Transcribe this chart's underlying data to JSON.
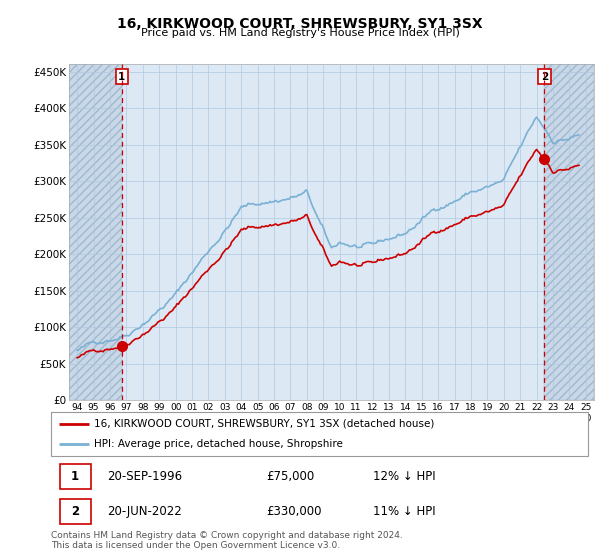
{
  "title": "16, KIRKWOOD COURT, SHREWSBURY, SY1 3SX",
  "subtitle": "Price paid vs. HM Land Registry's House Price Index (HPI)",
  "xlim": [
    1993.5,
    2025.5
  ],
  "ylim": [
    0,
    460000
  ],
  "yticks": [
    0,
    50000,
    100000,
    150000,
    200000,
    250000,
    300000,
    350000,
    400000,
    450000
  ],
  "ytick_labels": [
    "£0",
    "£50K",
    "£100K",
    "£150K",
    "£200K",
    "£250K",
    "£300K",
    "£350K",
    "£400K",
    "£450K"
  ],
  "xtick_years": [
    1994,
    1995,
    1996,
    1997,
    1998,
    1999,
    2000,
    2001,
    2002,
    2003,
    2004,
    2005,
    2006,
    2007,
    2008,
    2009,
    2010,
    2011,
    2012,
    2013,
    2014,
    2015,
    2016,
    2017,
    2018,
    2019,
    2020,
    2021,
    2022,
    2023,
    2024,
    2025
  ],
  "sale1_x": 1996.72,
  "sale1_y": 75000,
  "sale2_x": 2022.47,
  "sale2_y": 330000,
  "sale_color": "#cc0000",
  "hpi_color": "#7ab0d4",
  "chart_bg": "#dce9f5",
  "hatch_bg": "#c8d8e8",
  "grid_color": "#b0c8e0",
  "vline_color": "#cc0000",
  "legend_line1": "16, KIRKWOOD COURT, SHREWSBURY, SY1 3SX (detached house)",
  "legend_line2": "HPI: Average price, detached house, Shropshire",
  "table_row1": [
    "1",
    "20-SEP-1996",
    "£75,000",
    "12% ↓ HPI"
  ],
  "table_row2": [
    "2",
    "20-JUN-2022",
    "£330,000",
    "11% ↓ HPI"
  ],
  "footer": "Contains HM Land Registry data © Crown copyright and database right 2024.\nThis data is licensed under the Open Government Licence v3.0."
}
